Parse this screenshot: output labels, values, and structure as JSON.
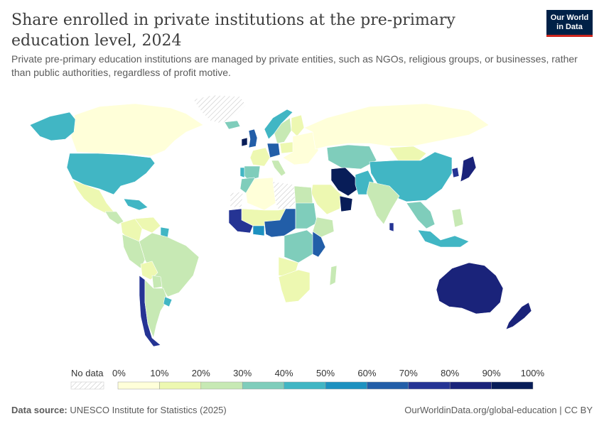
{
  "title": "Share enrolled in private institutions at the pre-primary education level, 2024",
  "subtitle": "Private pre-primary education institutions are managed by private entities, such as NGOs, religious groups, or businesses, rather than public authorities, regardless of profit motive.",
  "logo": {
    "line1": "Our World",
    "line2": "in Data"
  },
  "legend": {
    "no_data_label": "No data",
    "ticks": [
      "0%",
      "10%",
      "20%",
      "30%",
      "40%",
      "50%",
      "60%",
      "70%",
      "80%",
      "90%",
      "100%"
    ],
    "colors": [
      "#ffffd9",
      "#edf8b1",
      "#c7e9b4",
      "#7fcdbb",
      "#41b6c4",
      "#1d91c0",
      "#225ea8",
      "#253494",
      "#1a237a",
      "#081d58"
    ]
  },
  "footer": {
    "source_label": "Data source:",
    "source_text": "UNESCO Institute for Statistics (2025)",
    "url": "OurWorldinData.org/global-education | CC BY"
  },
  "map_data": {
    "metric": "share_private_preprimary_pct",
    "regions": [
      {
        "id": "canada",
        "value": 5
      },
      {
        "id": "alaska",
        "value": 45
      },
      {
        "id": "usa",
        "value": 45
      },
      {
        "id": "mexico",
        "value": 15
      },
      {
        "id": "central-america",
        "value": 20
      },
      {
        "id": "caribbean",
        "value": 45
      },
      {
        "id": "greenland",
        "value": null
      },
      {
        "id": "colombia",
        "value": 15
      },
      {
        "id": "venezuela",
        "value": 10
      },
      {
        "id": "guyana",
        "value": 40
      },
      {
        "id": "brazil",
        "value": 25
      },
      {
        "id": "peru",
        "value": 25
      },
      {
        "id": "bolivia",
        "value": 10
      },
      {
        "id": "chile",
        "value": 70
      },
      {
        "id": "argentina",
        "value": 25
      },
      {
        "id": "uruguay",
        "value": 45
      },
      {
        "id": "paraguay",
        "value": 25
      },
      {
        "id": "iceland",
        "value": 30
      },
      {
        "id": "uk",
        "value": 65
      },
      {
        "id": "ireland",
        "value": 90
      },
      {
        "id": "norway",
        "value": 45
      },
      {
        "id": "sweden",
        "value": 20
      },
      {
        "id": "finland",
        "value": 10
      },
      {
        "id": "france",
        "value": 10
      },
      {
        "id": "spain",
        "value": 30
      },
      {
        "id": "portugal",
        "value": 45
      },
      {
        "id": "germany",
        "value": 65
      },
      {
        "id": "italy",
        "value": 25
      },
      {
        "id": "poland",
        "value": 15
      },
      {
        "id": "eastern-europe",
        "value": 5
      },
      {
        "id": "russia",
        "value": 5
      },
      {
        "id": "kazakhstan",
        "value": 35
      },
      {
        "id": "mongolia",
        "value": 15
      },
      {
        "id": "china",
        "value": 45
      },
      {
        "id": "japan",
        "value": 80
      },
      {
        "id": "south-korea",
        "value": 75
      },
      {
        "id": "iran",
        "value": 95
      },
      {
        "id": "saudi-arabia",
        "value": 15
      },
      {
        "id": "oman",
        "value": 90
      },
      {
        "id": "pakistan",
        "value": 45
      },
      {
        "id": "india",
        "value": 25
      },
      {
        "id": "sri-lanka",
        "value": 70
      },
      {
        "id": "southeast-asia",
        "value": 35
      },
      {
        "id": "philippines",
        "value": 25
      },
      {
        "id": "indonesia",
        "value": 45
      },
      {
        "id": "australia",
        "value": 85
      },
      {
        "id": "new-zealand",
        "value": 80
      },
      {
        "id": "morocco",
        "value": 35
      },
      {
        "id": "algeria",
        "value": 5
      },
      {
        "id": "libya",
        "value": null
      },
      {
        "id": "egypt",
        "value": 25
      },
      {
        "id": "west-africa",
        "value": 70
      },
      {
        "id": "sahel",
        "value": 15
      },
      {
        "id": "nigeria",
        "value": 65
      },
      {
        "id": "ghana",
        "value": 55
      },
      {
        "id": "sudan",
        "value": 35
      },
      {
        "id": "ethiopia",
        "value": 20
      },
      {
        "id": "central-africa",
        "value": 35
      },
      {
        "id": "east-africa",
        "value": 60
      },
      {
        "id": "angola",
        "value": 10
      },
      {
        "id": "southern-africa",
        "value": 10
      },
      {
        "id": "madagascar",
        "value": 25
      },
      {
        "id": "western-sahara",
        "value": null
      }
    ]
  }
}
